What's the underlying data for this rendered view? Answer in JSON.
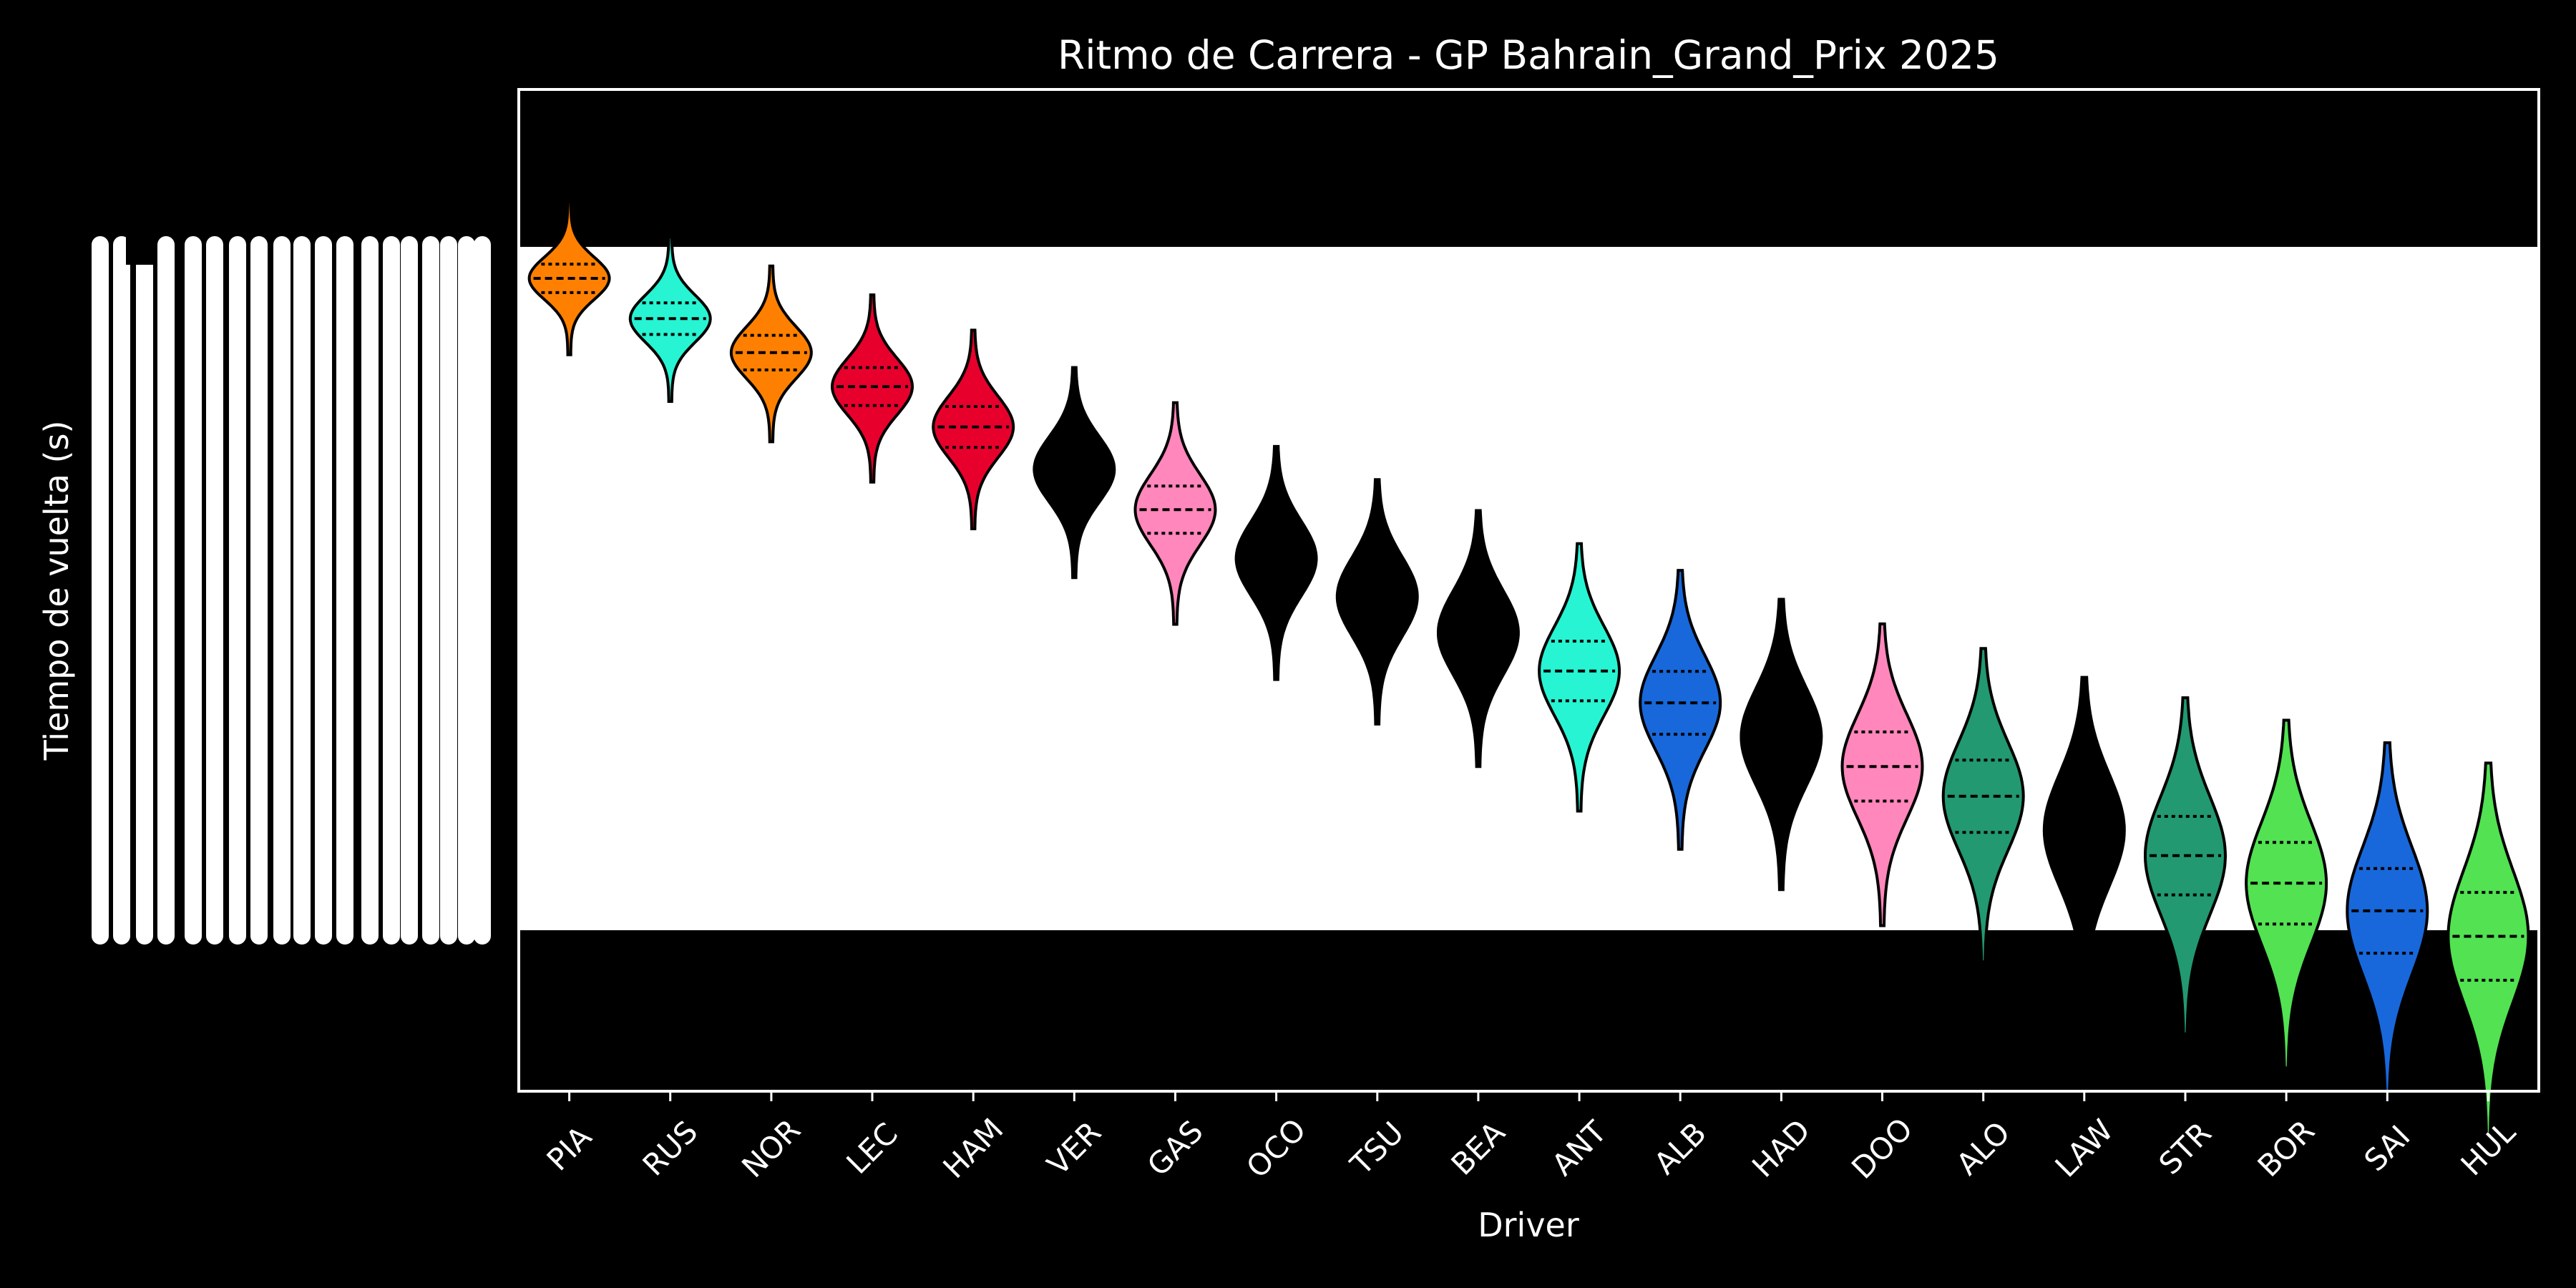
{
  "chart_data": {
    "type": "violin",
    "title": "Ritmo de Carrera - GP Bahrain_Grand_Prix 2025",
    "xlabel": "Driver",
    "ylabel": "Tiempo de vuelta (s)",
    "categories": [
      "PIA",
      "RUS",
      "NOR",
      "LEC",
      "HAM",
      "VER",
      "GAS",
      "OCO",
      "TSU",
      "BEA",
      "ANT",
      "ALB",
      "HAD",
      "DOO",
      "ALO",
      "LAW",
      "STR",
      "BOR",
      "SAI",
      "HUL"
    ],
    "colors": [
      "#ff8000",
      "#27f4d2",
      "#ff8000",
      "#e8002d",
      "#e8002d",
      "#000000",
      "#ff87bc",
      "#000000",
      "#000000",
      "#000000",
      "#27f4d2",
      "#1868db",
      "#000000",
      "#ff87bc",
      "#229971",
      "#000000",
      "#229971",
      "#52e252",
      "#1868db",
      "#52e252"
    ],
    "medians_s": [
      97.95,
      98.9,
      99.7,
      100.5,
      101.45,
      102.45,
      103.4,
      104.55,
      105.45,
      106.3,
      107.2,
      107.95,
      108.75,
      109.45,
      110.15,
      110.95,
      111.55,
      112.2,
      112.85,
      113.45
    ],
    "ylim": [
      93.5,
      117.1
    ],
    "plot_background": "#ffffff",
    "figure_background": "#000000",
    "legend": "none",
    "grid": false
  }
}
